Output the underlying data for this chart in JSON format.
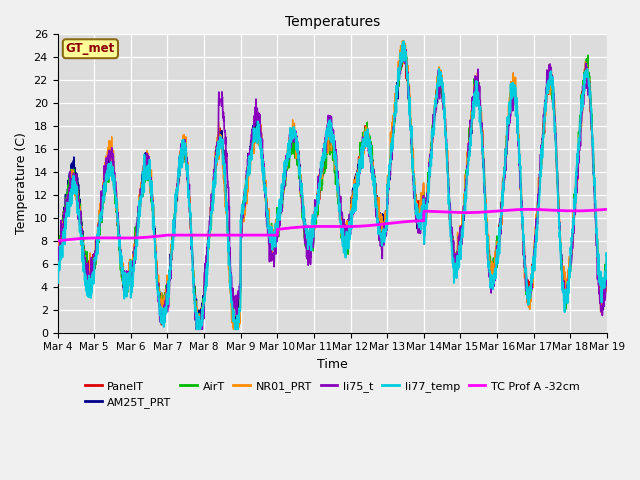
{
  "title": "Temperatures",
  "xlabel": "Time",
  "ylabel": "Temperature (C)",
  "ylim": [
    0,
    26
  ],
  "x_tick_labels": [
    "Mar 4",
    "Mar 5",
    "Mar 6",
    "Mar 7",
    "Mar 8",
    "Mar 9",
    "Mar 10",
    "Mar 11",
    "Mar 12",
    "Mar 13",
    "Mar 14",
    "Mar 15",
    "Mar 16",
    "Mar 17",
    "Mar 18",
    "Mar 19"
  ],
  "background_color": "#f0f0f0",
  "plot_bg_color": "#dcdcdc",
  "annotation_text": "GT_met",
  "annotation_bg": "#ffff99",
  "annotation_border": "#8b6914",
  "annotation_text_color": "#8b0000",
  "legend_entries": [
    "PanelT",
    "AM25T_PRT",
    "AirT",
    "NR01_PRT",
    "li75_t",
    "li77_temp",
    "TC Prof A -32cm"
  ],
  "line_colors": [
    "#dd0000",
    "#00008b",
    "#00bb00",
    "#ff8c00",
    "#8800bb",
    "#00ccdd",
    "#ff00ff"
  ],
  "line_widths": [
    1.0,
    1.0,
    1.0,
    1.0,
    1.2,
    1.5,
    2.0
  ]
}
